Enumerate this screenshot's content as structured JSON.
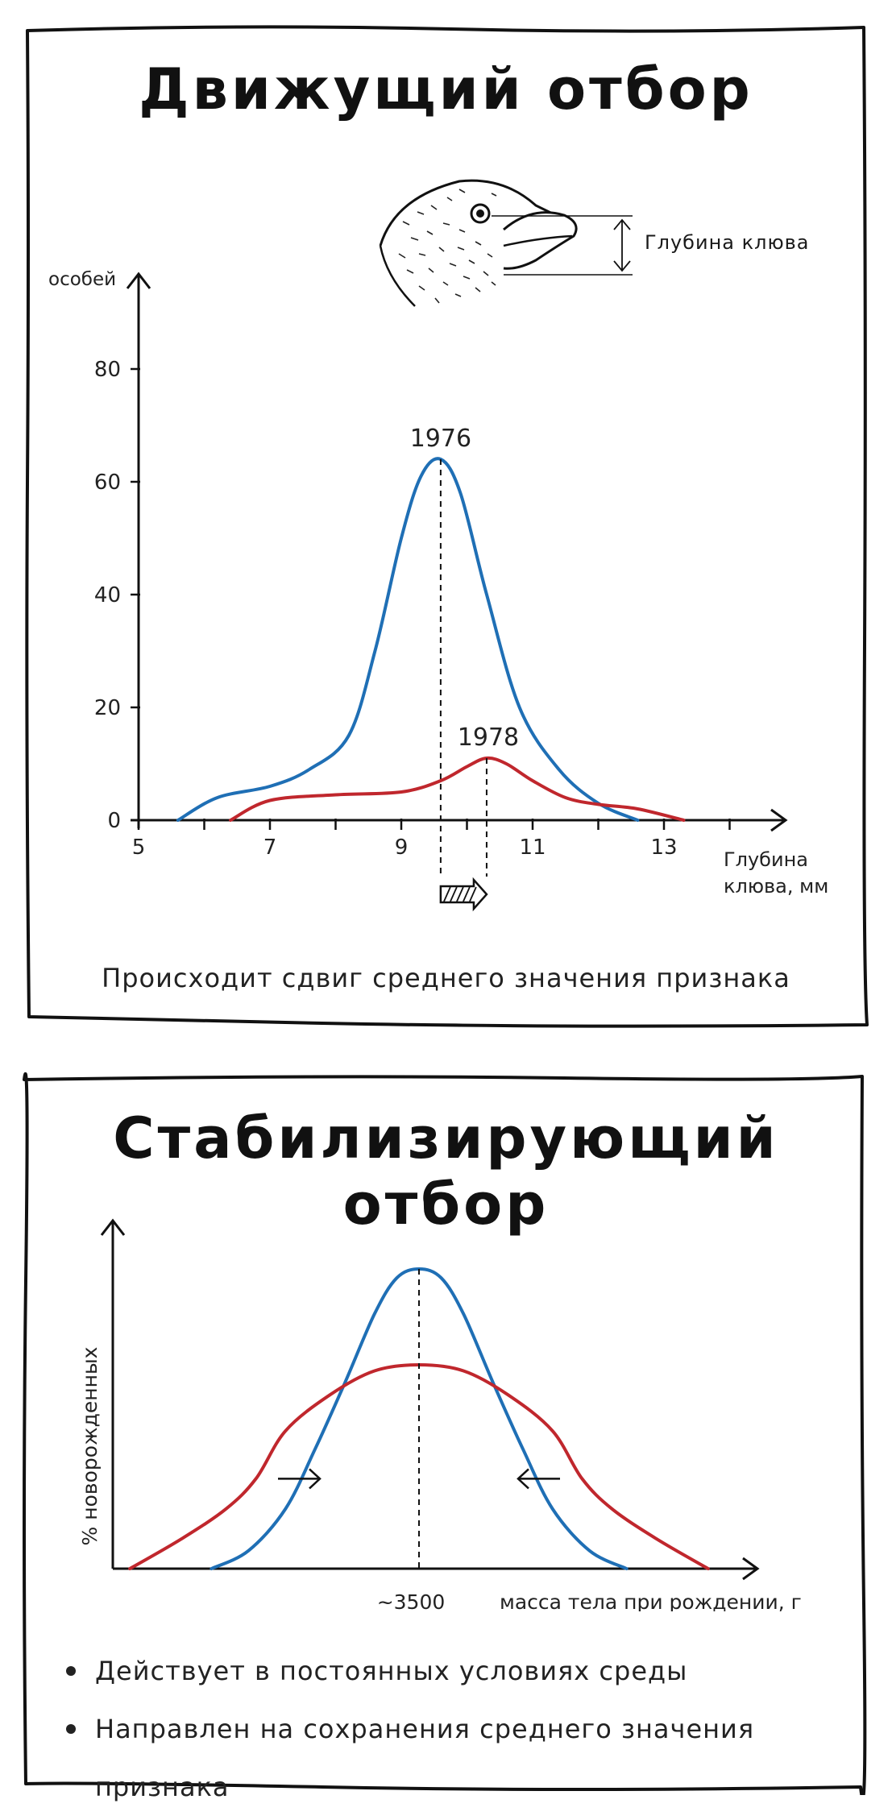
{
  "panel1": {
    "title": "Движущий отбор",
    "illustration_label": "Глубина клюва",
    "caption": "Происходит сдвиг среднего значения признака"
  },
  "panel2": {
    "title": "Стабилизирующий отбор",
    "bullets": [
      "Действует в постоянных условиях среды",
      "Направлен на сохранения среднего значения признака"
    ]
  },
  "chart_data": [
    {
      "type": "line",
      "ylabel": "особей",
      "xlabel": [
        "Глубина",
        "клюва, мм"
      ],
      "xlim": [
        5,
        15
      ],
      "ylim": [
        0,
        85
      ],
      "x_ticks": [
        5,
        7,
        9,
        11,
        13
      ],
      "y_ticks": [
        0,
        20,
        40,
        60,
        80
      ],
      "series": [
        {
          "name": "1976",
          "color": "#1f6fb5",
          "peak_x": 9.6,
          "x": [
            5.6,
            6.2,
            7.0,
            7.6,
            8.2,
            8.6,
            9.0,
            9.3,
            9.6,
            9.9,
            10.3,
            10.8,
            11.4,
            12.0,
            12.6
          ],
          "y": [
            0,
            4,
            6,
            9,
            15,
            30,
            50,
            61,
            64,
            58,
            40,
            20,
            9,
            3,
            0
          ]
        },
        {
          "name": "1978",
          "color": "#c0272d",
          "peak_x": 10.3,
          "x": [
            6.4,
            7.0,
            8.0,
            9.0,
            9.6,
            10.0,
            10.3,
            10.6,
            11.0,
            11.5,
            12.0,
            12.6,
            13.3
          ],
          "y": [
            0,
            3.5,
            4.5,
            5,
            7,
            9.5,
            11,
            10,
            7,
            4,
            2.8,
            2,
            0
          ]
        }
      ],
      "annotations": [
        "1976",
        "1978"
      ]
    },
    {
      "type": "line",
      "ylabel": "% новорожденных",
      "xlabel": "масса тела при рождении, г",
      "x_tick_label": "~3500",
      "mean_x": 0,
      "xlim": [
        -4.2,
        5.2
      ],
      "ylim": [
        0,
        1.1
      ],
      "series": [
        {
          "color": "#1f6fb5",
          "x": [
            -2.8,
            -2.3,
            -1.8,
            -1.4,
            -1.0,
            -0.6,
            -0.3,
            0,
            0.3,
            0.6,
            1.0,
            1.4,
            1.8,
            2.3,
            2.8
          ],
          "y": [
            0,
            0.06,
            0.2,
            0.4,
            0.62,
            0.85,
            0.97,
            1.0,
            0.97,
            0.85,
            0.62,
            0.4,
            0.2,
            0.06,
            0
          ]
        },
        {
          "color": "#c0272d",
          "x": [
            -3.9,
            -3.2,
            -2.6,
            -2.2,
            -1.8,
            -1.2,
            -0.6,
            0,
            0.6,
            1.2,
            1.8,
            2.2,
            2.6,
            3.2,
            3.9
          ],
          "y": [
            0,
            0.1,
            0.2,
            0.3,
            0.46,
            0.58,
            0.66,
            0.68,
            0.66,
            0.58,
            0.46,
            0.3,
            0.2,
            0.1,
            0
          ]
        }
      ]
    }
  ]
}
